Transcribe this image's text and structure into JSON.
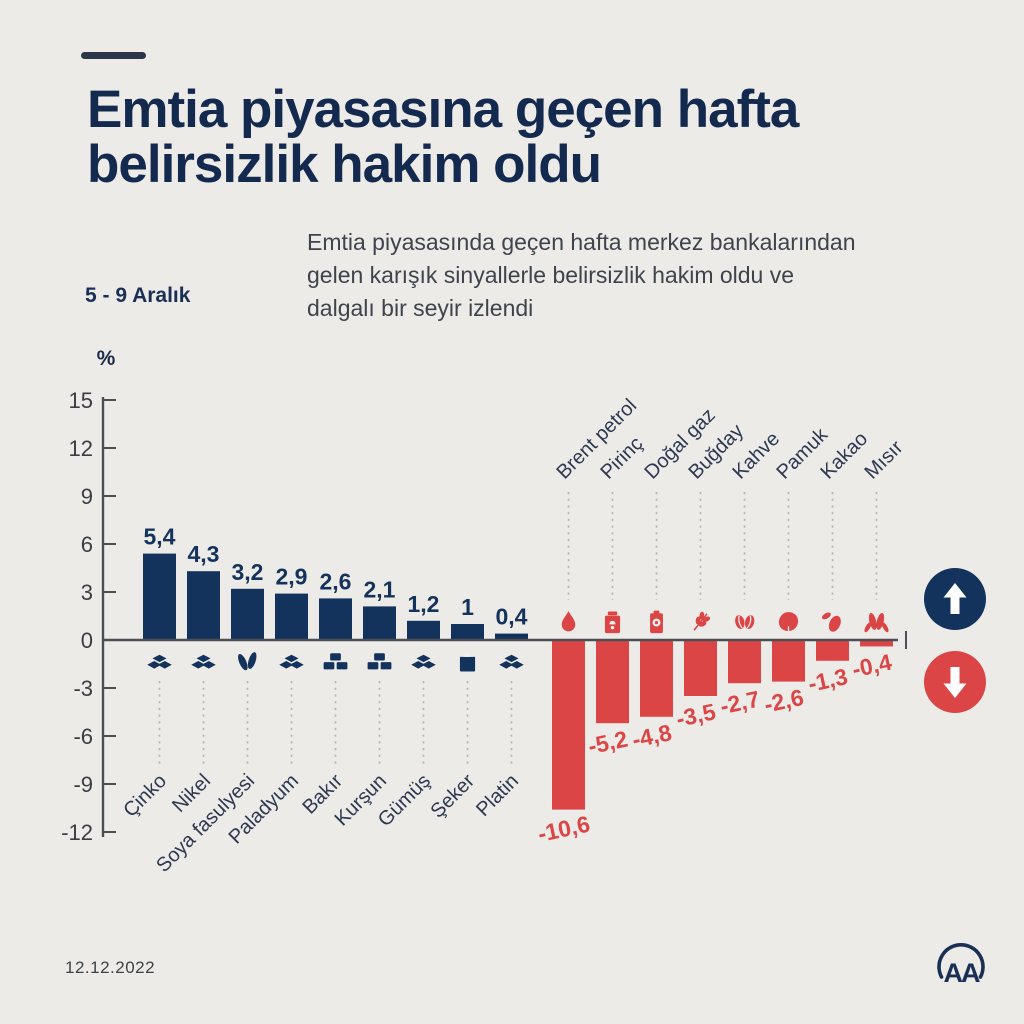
{
  "meta": {
    "date": "12.12.2022",
    "brand": "AA"
  },
  "header": {
    "title_lines": [
      "Emtia piyasasına geçen hafta",
      "belirsizlik hakim oldu"
    ],
    "subtitle_lines": [
      "Emtia piyasasında geçen hafta merkez bankalarından",
      "gelen karışık sinyallerle belirsizlik hakim oldu ve",
      "dalgalı bir seyir izlendi"
    ],
    "date_range": "5 - 9 Aralık"
  },
  "chart_data": {
    "type": "bar",
    "title": "Emtia piyasasına geçen hafta belirsizlik hakim oldu",
    "xlabel": "",
    "ylabel": "%",
    "ylim": [
      -12,
      15
    ],
    "yticks": [
      15,
      12,
      9,
      6,
      3,
      0,
      -3,
      -6,
      -9,
      -12
    ],
    "grid": false,
    "legend": {
      "up": {
        "meaning": "haftalık artış",
        "symbol": "arrow-up",
        "color": "#14335c"
      },
      "down": {
        "meaning": "haftalık düşüş",
        "symbol": "arrow-down",
        "color": "#dc4545"
      }
    },
    "series": [
      {
        "name": "Yükselenler",
        "direction": "up",
        "color": "#14335c",
        "items": [
          {
            "label": "Çinko",
            "value": 5.4,
            "value_label": "5,4",
            "icon": "ingot-stack"
          },
          {
            "label": "Nikel",
            "value": 4.3,
            "value_label": "4,3",
            "icon": "ingot-stack"
          },
          {
            "label": "Soya fasulyesi",
            "value": 3.2,
            "value_label": "3,2",
            "icon": "bean-pods"
          },
          {
            "label": "Paladyum",
            "value": 2.9,
            "value_label": "2,9",
            "icon": "ingot-stack"
          },
          {
            "label": "Bakır",
            "value": 2.6,
            "value_label": "2,6",
            "icon": "block-stack"
          },
          {
            "label": "Kurşun",
            "value": 2.1,
            "value_label": "2,1",
            "icon": "block-stack"
          },
          {
            "label": "Gümüş",
            "value": 1.2,
            "value_label": "1,2",
            "icon": "ingot-stack"
          },
          {
            "label": "Şeker",
            "value": 1.0,
            "value_label": "1",
            "icon": "sugar-sack"
          },
          {
            "label": "Platin",
            "value": 0.4,
            "value_label": "0,4",
            "icon": "ingot-stack"
          }
        ]
      },
      {
        "name": "Düşenler",
        "direction": "down",
        "color": "#dc4545",
        "items": [
          {
            "label": "Brent petrol",
            "value": -10.6,
            "value_label": "-10,6",
            "icon": "oil-drop"
          },
          {
            "label": "Pirinç",
            "value": -5.2,
            "value_label": "-5,2",
            "icon": "rice-sack"
          },
          {
            "label": "Doğal gaz",
            "value": -4.8,
            "value_label": "-4,8",
            "icon": "gas-canister"
          },
          {
            "label": "Buğday",
            "value": -3.5,
            "value_label": "-3,5",
            "icon": "wheat"
          },
          {
            "label": "Kahve",
            "value": -2.7,
            "value_label": "-2,7",
            "icon": "coffee-beans"
          },
          {
            "label": "Pamuk",
            "value": -2.6,
            "value_label": "-2,6",
            "icon": "cotton-leaf"
          },
          {
            "label": "Kakao",
            "value": -1.3,
            "value_label": "-1,3",
            "icon": "cacao-pod"
          },
          {
            "label": "Mısır",
            "value": -0.4,
            "value_label": "-0,4",
            "icon": "corn"
          }
        ]
      }
    ]
  }
}
